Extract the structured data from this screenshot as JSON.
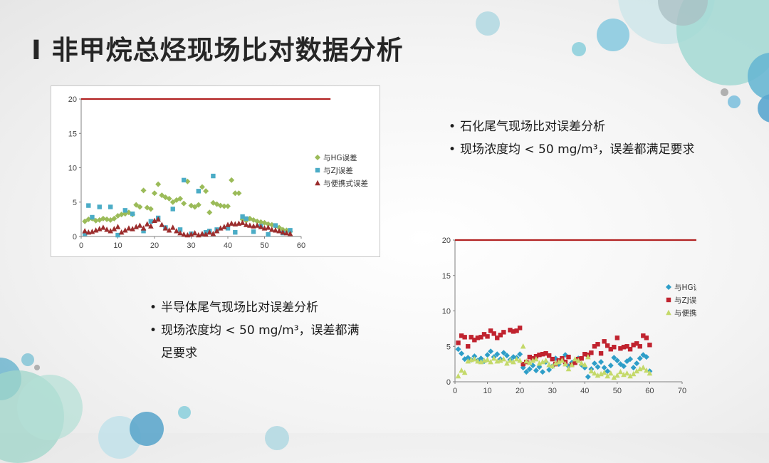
{
  "slide": {
    "title": "I  非甲烷总烃现场比对数据分析",
    "right_bullets": [
      "石化尾气现场比对误差分析",
      "现场浓度均 < 50 mg/m³，误差都满足要求"
    ],
    "left_bullets": [
      "半导体尾气现场比对误差分析",
      "现场浓度均 < 50 mg/m³，误差都满足要求"
    ]
  },
  "colors": {
    "limit_line": "#b22222",
    "chart1_hg": "#9bbb59",
    "chart1_zj": "#4bacc6",
    "chart1_portable": "#9b2d2d",
    "chart2_hg": "#2e9ec8",
    "chart2_zj": "#c0232f",
    "chart2_portable": "#c4d96a"
  },
  "chart_data": [
    {
      "type": "scatter",
      "title": "",
      "xlabel": "",
      "ylabel": "",
      "xlim": [
        0,
        60
      ],
      "ylim": [
        0,
        20
      ],
      "xticks": [
        "0",
        "10",
        "20",
        "30",
        "40",
        "50",
        "60"
      ],
      "yticks": [
        "0",
        "5",
        "10",
        "15",
        "20"
      ],
      "grid": false,
      "legend": "right",
      "limit_line": {
        "y": 20,
        "x_end": 68
      },
      "series": [
        {
          "name": "与HG误差",
          "marker": "diamond",
          "color": "#9bbb59",
          "x": [
            1,
            2,
            3,
            4,
            5,
            6,
            7,
            8,
            9,
            10,
            11,
            12,
            13,
            14,
            15,
            16,
            17,
            18,
            19,
            20,
            21,
            22,
            23,
            24,
            25,
            26,
            27,
            28,
            29,
            30,
            31,
            32,
            33,
            34,
            35,
            36,
            37,
            38,
            39,
            40,
            41,
            42,
            43,
            44,
            45,
            46,
            47,
            48,
            49,
            50,
            51,
            52,
            53,
            54,
            55,
            56,
            57
          ],
          "y": [
            2.2,
            2.5,
            2.6,
            2.3,
            2.4,
            2.6,
            2.5,
            2.4,
            2.6,
            3.0,
            3.2,
            3.3,
            3.5,
            3.2,
            4.6,
            4.3,
            6.7,
            4.2,
            4.0,
            6.3,
            7.6,
            6.0,
            5.7,
            5.5,
            5.0,
            5.3,
            5.5,
            4.8,
            8.0,
            4.5,
            4.3,
            4.6,
            7.2,
            6.6,
            3.5,
            4.9,
            4.7,
            4.5,
            4.4,
            4.4,
            8.2,
            6.3,
            6.3,
            2.5,
            2.3,
            2.6,
            2.4,
            2.2,
            2.1,
            2.0,
            1.8,
            1.7,
            1.5,
            1.3,
            1.0,
            0.9,
            0.7
          ]
        },
        {
          "name": "与ZJ误差",
          "marker": "square",
          "color": "#4bacc6",
          "x": [
            1,
            2,
            3,
            5,
            8,
            10,
            12,
            14,
            17,
            19,
            21,
            23,
            25,
            27,
            28,
            30,
            32,
            34,
            35,
            36,
            37,
            40,
            42,
            44,
            45,
            47,
            49,
            51,
            53,
            55,
            57
          ],
          "y": [
            0.4,
            4.5,
            2.8,
            4.3,
            4.3,
            0.2,
            3.8,
            3.3,
            0.8,
            2.2,
            2.7,
            1.3,
            4.0,
            1.0,
            8.2,
            0.4,
            6.6,
            0.6,
            0.8,
            8.8,
            1.0,
            1.2,
            0.6,
            2.9,
            2.6,
            0.7,
            1.5,
            0.3,
            1.6,
            0.5,
            0.9
          ]
        },
        {
          "name": "与便携式误差",
          "marker": "triangle",
          "color": "#9b2d2d",
          "x": [
            1,
            2,
            3,
            4,
            5,
            6,
            7,
            8,
            9,
            10,
            11,
            12,
            13,
            14,
            15,
            16,
            17,
            18,
            19,
            20,
            21,
            22,
            23,
            24,
            25,
            26,
            27,
            28,
            29,
            30,
            31,
            32,
            33,
            34,
            35,
            36,
            37,
            38,
            39,
            40,
            41,
            42,
            43,
            44,
            45,
            46,
            47,
            48,
            49,
            50,
            51,
            52,
            53,
            54,
            55,
            56,
            57
          ],
          "y": [
            0.8,
            0.6,
            0.7,
            0.9,
            1.1,
            1.3,
            1.0,
            0.8,
            1.1,
            1.4,
            0.6,
            0.9,
            1.2,
            1.1,
            1.4,
            1.6,
            1.2,
            1.8,
            1.5,
            2.3,
            2.5,
            1.7,
            1.2,
            0.9,
            1.3,
            0.8,
            0.5,
            0.3,
            0.2,
            0.3,
            0.5,
            0.2,
            0.4,
            0.3,
            0.6,
            0.4,
            0.8,
            1.2,
            1.4,
            1.7,
            1.9,
            1.8,
            1.9,
            2.0,
            1.7,
            1.6,
            1.5,
            1.6,
            1.4,
            1.2,
            1.3,
            1.0,
            0.9,
            0.8,
            0.6,
            0.5,
            0.4
          ]
        }
      ]
    },
    {
      "type": "scatter",
      "title": "",
      "xlabel": "",
      "ylabel": "",
      "xlim": [
        0,
        70
      ],
      "ylim": [
        0,
        20
      ],
      "xticks": [
        "0",
        "10",
        "20",
        "30",
        "40",
        "50",
        "60",
        "70"
      ],
      "yticks": [
        "0",
        "5",
        "10",
        "15",
        "20"
      ],
      "grid": false,
      "legend": "right",
      "limit_line": {
        "y": 20,
        "x_end": 75
      },
      "series": [
        {
          "name": "与HG误差",
          "marker": "diamond",
          "color": "#2e9ec8",
          "x": [
            1,
            2,
            3,
            4,
            5,
            6,
            7,
            8,
            9,
            10,
            11,
            12,
            13,
            14,
            15,
            16,
            17,
            18,
            19,
            20,
            21,
            22,
            23,
            24,
            25,
            26,
            27,
            28,
            29,
            30,
            31,
            32,
            33,
            34,
            35,
            36,
            37,
            38,
            39,
            40,
            41,
            42,
            43,
            44,
            45,
            46,
            47,
            48,
            49,
            50,
            51,
            52,
            53,
            54,
            55,
            56,
            57,
            58,
            59,
            60
          ],
          "y": [
            4.6,
            4.0,
            3.2,
            3.4,
            3.1,
            3.6,
            3.0,
            3.3,
            2.9,
            3.8,
            4.3,
            3.5,
            3.9,
            3.2,
            4.1,
            3.7,
            3.1,
            3.5,
            3.4,
            3.9,
            2.0,
            1.4,
            1.8,
            2.3,
            1.6,
            2.1,
            1.4,
            2.8,
            1.7,
            2.2,
            3.3,
            2.5,
            3.1,
            3.8,
            2.2,
            2.7,
            3.0,
            3.3,
            2.4,
            2.0,
            0.7,
            1.8,
            2.6,
            2.1,
            2.8,
            2.0,
            1.5,
            2.3,
            3.4,
            3.0,
            2.5,
            2.2,
            2.9,
            3.2,
            2.0,
            2.6,
            3.3,
            3.8,
            3.5,
            1.5
          ]
        },
        {
          "name": "与ZJ误差",
          "marker": "square",
          "color": "#c0232f",
          "x": [
            1,
            2,
            3,
            4,
            5,
            6,
            7,
            8,
            9,
            10,
            11,
            12,
            13,
            14,
            15,
            17,
            18,
            19,
            20,
            21,
            22,
            23,
            24,
            25,
            26,
            27,
            28,
            29,
            30,
            31,
            32,
            33,
            34,
            35,
            36,
            37,
            38,
            39,
            40,
            41,
            42,
            43,
            44,
            45,
            46,
            47,
            48,
            49,
            50,
            51,
            52,
            53,
            54,
            55,
            56,
            57,
            58,
            59,
            60
          ],
          "y": [
            5.5,
            6.5,
            6.3,
            5.0,
            6.3,
            5.9,
            6.2,
            6.3,
            6.7,
            6.4,
            7.2,
            6.8,
            6.2,
            6.6,
            7.0,
            7.3,
            7.1,
            7.2,
            7.6,
            2.5,
            2.8,
            3.5,
            3.3,
            3.6,
            3.8,
            3.9,
            4.0,
            3.7,
            3.2,
            2.5,
            3.0,
            3.3,
            2.8,
            3.5,
            2.4,
            2.7,
            3.2,
            3.3,
            3.9,
            3.8,
            4.1,
            5.0,
            5.3,
            4.0,
            5.7,
            5.1,
            4.6,
            4.9,
            6.2,
            4.7,
            4.9,
            5.0,
            4.6,
            5.2,
            5.4,
            5.0,
            6.5,
            6.2,
            5.2
          ]
        },
        {
          "name": "与便携式误差",
          "marker": "triangle",
          "color": "#c4d96a",
          "x": [
            1,
            2,
            3,
            4,
            5,
            6,
            7,
            8,
            9,
            10,
            11,
            12,
            13,
            14,
            15,
            16,
            17,
            18,
            19,
            20,
            21,
            22,
            23,
            24,
            25,
            26,
            27,
            28,
            29,
            30,
            31,
            32,
            33,
            34,
            35,
            36,
            37,
            38,
            39,
            40,
            41,
            42,
            43,
            44,
            45,
            46,
            47,
            48,
            49,
            50,
            51,
            52,
            53,
            54,
            55,
            56,
            57,
            58,
            59,
            60
          ],
          "y": [
            0.8,
            1.6,
            1.3,
            2.9,
            3.1,
            3.2,
            2.9,
            2.8,
            3.0,
            3.1,
            2.8,
            3.3,
            2.9,
            3.0,
            3.2,
            2.6,
            3.0,
            2.8,
            3.2,
            3.0,
            5.0,
            2.9,
            2.7,
            3.0,
            3.2,
            2.6,
            2.8,
            3.0,
            2.4,
            2.2,
            2.6,
            2.8,
            3.0,
            2.5,
            1.8,
            2.4,
            3.2,
            3.0,
            2.6,
            2.4,
            3.5,
            1.5,
            1.2,
            0.9,
            1.1,
            1.3,
            0.8,
            1.2,
            0.6,
            0.9,
            1.4,
            1.0,
            1.2,
            0.8,
            1.1,
            1.5,
            1.8,
            2.0,
            1.6,
            1.2
          ]
        }
      ]
    }
  ]
}
